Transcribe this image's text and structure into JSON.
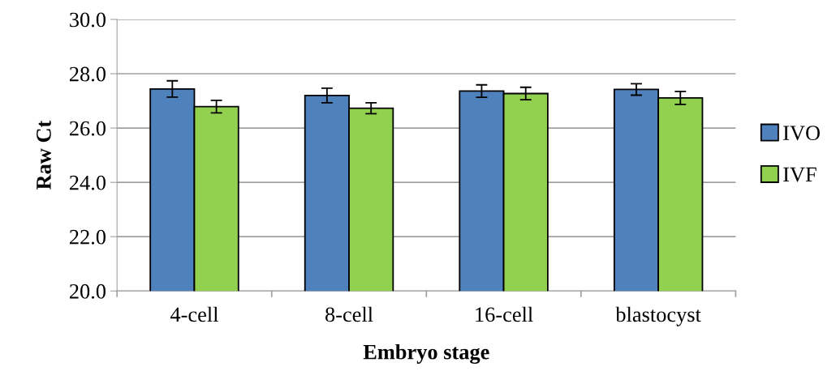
{
  "chart_data": {
    "type": "bar",
    "xlabel": "Embryo stage",
    "ylabel": "Raw Ct",
    "categories": [
      "4-cell",
      "8-cell",
      "16-cell",
      "blastocyst"
    ],
    "series": [
      {
        "name": "IVO",
        "color": "#4f81bd",
        "values": [
          27.44,
          27.2,
          27.36,
          27.42
        ],
        "errors": [
          0.3,
          0.27,
          0.23,
          0.21
        ]
      },
      {
        "name": "IVF",
        "color": "#92d050",
        "values": [
          26.79,
          26.73,
          27.27,
          27.11
        ],
        "errors": [
          0.23,
          0.2,
          0.23,
          0.24
        ]
      }
    ],
    "ylim": [
      20.0,
      30.0
    ],
    "yticks": [
      {
        "value": 20,
        "label": "20.0"
      },
      {
        "value": 22,
        "label": "22.0"
      },
      {
        "value": 24,
        "label": "24.0"
      },
      {
        "value": 26,
        "label": "26.0"
      },
      {
        "value": 28,
        "label": "28.0"
      },
      {
        "value": 30,
        "label": "30.0"
      }
    ],
    "grid": "y",
    "legend": "right"
  }
}
